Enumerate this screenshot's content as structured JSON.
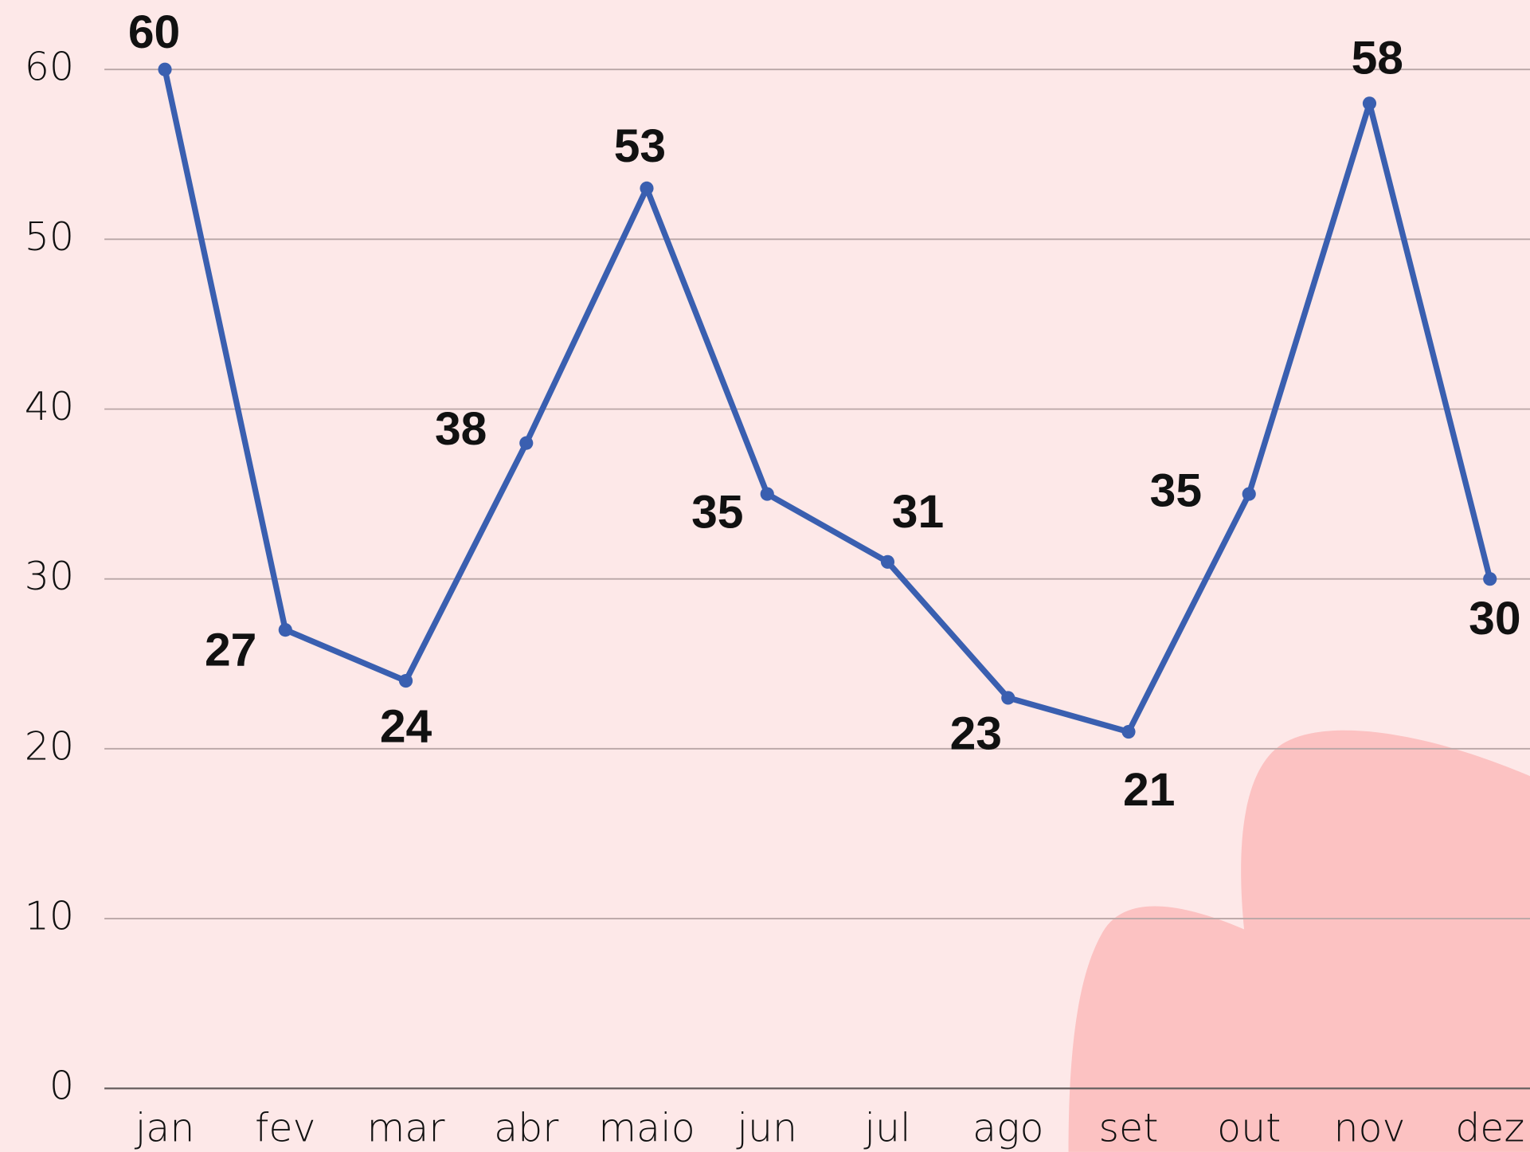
{
  "chart_data": {
    "type": "line",
    "categories": [
      "jan",
      "fev",
      "mar",
      "abr",
      "maio",
      "jun",
      "jul",
      "ago",
      "set",
      "out",
      "nov",
      "dez"
    ],
    "values": [
      60,
      27,
      24,
      38,
      53,
      35,
      31,
      23,
      21,
      35,
      58,
      30
    ],
    "color": "#3a5fb0",
    "ylim": [
      0,
      60
    ],
    "yticks": [
      0,
      10,
      20,
      30,
      40,
      50,
      60
    ],
    "grid": true
  }
}
